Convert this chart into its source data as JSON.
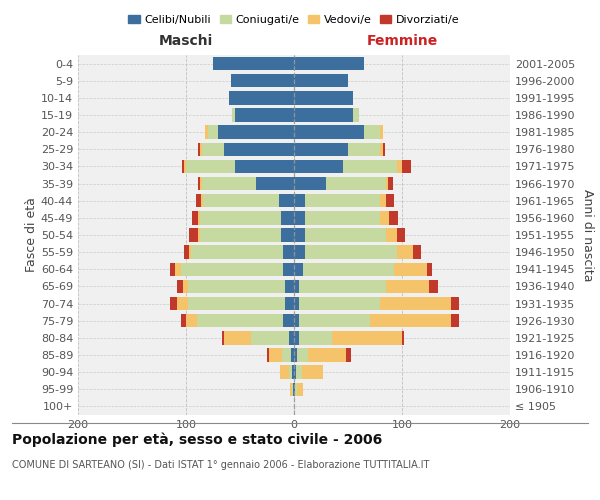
{
  "age_groups": [
    "100+",
    "95-99",
    "90-94",
    "85-89",
    "80-84",
    "75-79",
    "70-74",
    "65-69",
    "60-64",
    "55-59",
    "50-54",
    "45-49",
    "40-44",
    "35-39",
    "30-34",
    "25-29",
    "20-24",
    "15-19",
    "10-14",
    "5-9",
    "0-4"
  ],
  "birth_years": [
    "≤ 1905",
    "1906-1910",
    "1911-1915",
    "1916-1920",
    "1921-1925",
    "1926-1930",
    "1931-1935",
    "1936-1940",
    "1941-1945",
    "1946-1950",
    "1951-1955",
    "1956-1960",
    "1961-1965",
    "1966-1970",
    "1971-1975",
    "1976-1980",
    "1981-1985",
    "1986-1990",
    "1991-1995",
    "1996-2000",
    "2001-2005"
  ],
  "maschi": {
    "celibi": [
      0,
      1,
      2,
      3,
      5,
      10,
      8,
      8,
      10,
      10,
      12,
      12,
      14,
      35,
      55,
      65,
      70,
      55,
      60,
      58,
      75
    ],
    "coniugati": [
      0,
      1,
      3,
      8,
      35,
      80,
      90,
      90,
      95,
      85,
      75,
      75,
      70,
      50,
      45,
      20,
      10,
      2,
      0,
      0,
      0
    ],
    "vedovi": [
      0,
      2,
      8,
      12,
      25,
      10,
      10,
      5,
      5,
      2,
      2,
      2,
      2,
      2,
      2,
      2,
      2,
      0,
      0,
      0,
      0
    ],
    "divorziati": [
      0,
      0,
      0,
      2,
      2,
      5,
      7,
      5,
      5,
      5,
      8,
      5,
      5,
      2,
      2,
      2,
      0,
      0,
      0,
      0,
      0
    ]
  },
  "femmine": {
    "nubili": [
      0,
      1,
      2,
      3,
      5,
      5,
      5,
      5,
      8,
      10,
      10,
      10,
      10,
      30,
      45,
      50,
      65,
      55,
      55,
      50,
      65
    ],
    "coniugate": [
      0,
      2,
      5,
      10,
      30,
      65,
      75,
      80,
      85,
      85,
      75,
      70,
      70,
      55,
      50,
      30,
      15,
      5,
      0,
      0,
      0
    ],
    "vedove": [
      0,
      5,
      20,
      35,
      65,
      75,
      65,
      40,
      30,
      15,
      10,
      8,
      5,
      2,
      5,
      2,
      2,
      0,
      0,
      0,
      0
    ],
    "divorziate": [
      0,
      0,
      0,
      5,
      2,
      8,
      8,
      8,
      5,
      8,
      8,
      8,
      8,
      5,
      8,
      2,
      0,
      0,
      0,
      0,
      0
    ]
  },
  "colors": {
    "celibi": "#3d6f9e",
    "coniugati": "#c5d9a0",
    "vedovi": "#f5c46a",
    "divorziati": "#c0392b"
  },
  "legend_labels": [
    "Celibi/Nubili",
    "Coniugati/e",
    "Vedovi/e",
    "Divorziati/e"
  ],
  "title": "Popolazione per età, sesso e stato civile - 2006",
  "subtitle": "COMUNE DI SARTEANO (SI) - Dati ISTAT 1° gennaio 2006 - Elaborazione TUTTITALIA.IT",
  "xlabel_left": "Maschi",
  "xlabel_right": "Femmine",
  "ylabel_left": "Fasce di età",
  "ylabel_right": "Anni di nascita",
  "xlim": 200,
  "bg_color": "#ffffff",
  "grid_color": "#cccccc"
}
